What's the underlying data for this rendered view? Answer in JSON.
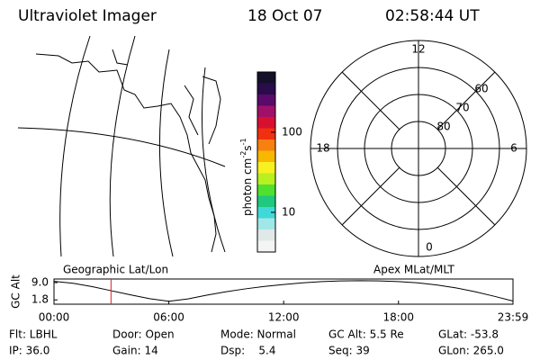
{
  "header": {
    "title": "Ultraviolet Imager",
    "date": "18 Oct 07",
    "time": "02:58:44 UT"
  },
  "colorbar": {
    "label_parts": [
      "photon cm",
      "-2",
      "s",
      "-1"
    ],
    "scale": "log",
    "lim": [
      3.2,
      565
    ],
    "ticks": [
      10,
      100
    ],
    "colors": [
      "#14102a",
      "#2a0c4a",
      "#5a0a6a",
      "#a0106a",
      "#d81030",
      "#f03010",
      "#f88010",
      "#f8b800",
      "#f8f020",
      "#b8f020",
      "#50e030",
      "#20c880",
      "#40d8d8",
      "#a0e8e8",
      "#e0e8e8",
      "#f4f4f4"
    ]
  },
  "polar": {
    "rlim": [
      90,
      50
    ],
    "rticks": [
      60,
      70,
      80
    ],
    "mlt_ticks": [
      12,
      6,
      0,
      18
    ]
  },
  "chart_data": {
    "type": "line",
    "annotations": [
      "Geographic Lat/Lon",
      "Apex MLat/MLT"
    ],
    "y_label": "GC Alt",
    "x": [
      0,
      1,
      2,
      3,
      4,
      5,
      6,
      7,
      8,
      9,
      10,
      11,
      12,
      13,
      14,
      15,
      16,
      17,
      18,
      19,
      20,
      21,
      22,
      23,
      23.983
    ],
    "values": [
      9.5,
      8.7,
      7.3,
      5.6,
      3.9,
      2.3,
      1.2,
      2.2,
      3.8,
      5.2,
      6.4,
      7.4,
      8.2,
      8.9,
      9.4,
      9.7,
      9.8,
      9.7,
      9.4,
      8.9,
      8.0,
      6.8,
      5.2,
      3.3,
      1.3
    ],
    "color": "#000000",
    "marker_x": 2.979,
    "marker_color": "#e02020",
    "xlim": [
      0,
      23.983
    ],
    "ylim": [
      0,
      10.5
    ],
    "xticks": [
      {
        "value": 0,
        "label": "00:00"
      },
      {
        "value": 6,
        "label": "06:00"
      },
      {
        "value": 12,
        "label": "12:00"
      },
      {
        "value": 18,
        "label": "18:00"
      },
      {
        "value": 23.983,
        "label": "23:59"
      }
    ],
    "yticks": [
      {
        "value": 9,
        "label": "9.0"
      },
      {
        "value": 1.8,
        "label": "1.8"
      }
    ]
  },
  "footer": {
    "rows": [
      [
        "Flt: LBHL",
        "Door: Open",
        "Mode: Normal",
        "GC Alt: 5.5 Re",
        "GLat: -53.8"
      ],
      [
        "IP: 36.0",
        "Gain: 14",
        "Dsp:    5.4",
        "Seq: 39",
        "GLon: 265.0"
      ]
    ]
  }
}
